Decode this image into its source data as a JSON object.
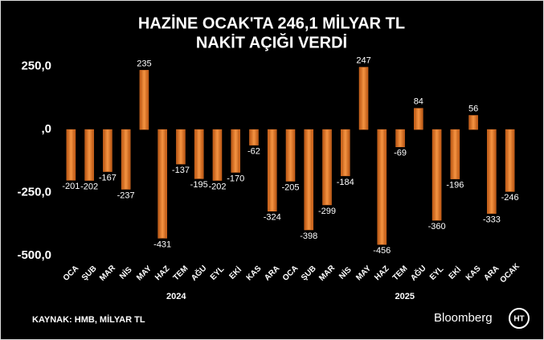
{
  "chart_data": {
    "type": "bar",
    "title": [
      "HAZİNE OCAK'TA 246,1 MİLYAR TL",
      "NAKİT AÇIĞI VERDİ"
    ],
    "categories": [
      "OCA",
      "ŞUB",
      "MAR",
      "NİS",
      "MAY",
      "HAZ",
      "TEM",
      "AĞU",
      "EYL",
      "EKİ",
      "KAS",
      "ARA",
      "OCA",
      "ŞUB",
      "MAR",
      "NİS",
      "MAY",
      "HAZ",
      "TEM",
      "AĞU",
      "EYL",
      "EKİ",
      "KAS",
      "ARA",
      "OCAK"
    ],
    "values": [
      -201,
      -202,
      -167,
      -237,
      235,
      -431,
      -137,
      -195,
      -202,
      -170,
      -62,
      -324,
      -205,
      -398,
      -299,
      -184,
      247,
      -456,
      -69,
      84,
      -360,
      -196,
      56,
      -333,
      -246
    ],
    "x_groups": [
      "2024",
      "2025"
    ],
    "color": "#e8782a",
    "ylim": [
      -500,
      300
    ],
    "yticks": [
      {
        "value": -500,
        "label": "-500,0"
      },
      {
        "value": -250,
        "label": "-250,0"
      },
      {
        "value": 0,
        "label": ",0"
      },
      {
        "value": 250,
        "label": "250,0"
      }
    ],
    "source": "KAYNAK: HMB, MİLYAR TL",
    "brand": "Bloomberg",
    "logo": "HT"
  }
}
